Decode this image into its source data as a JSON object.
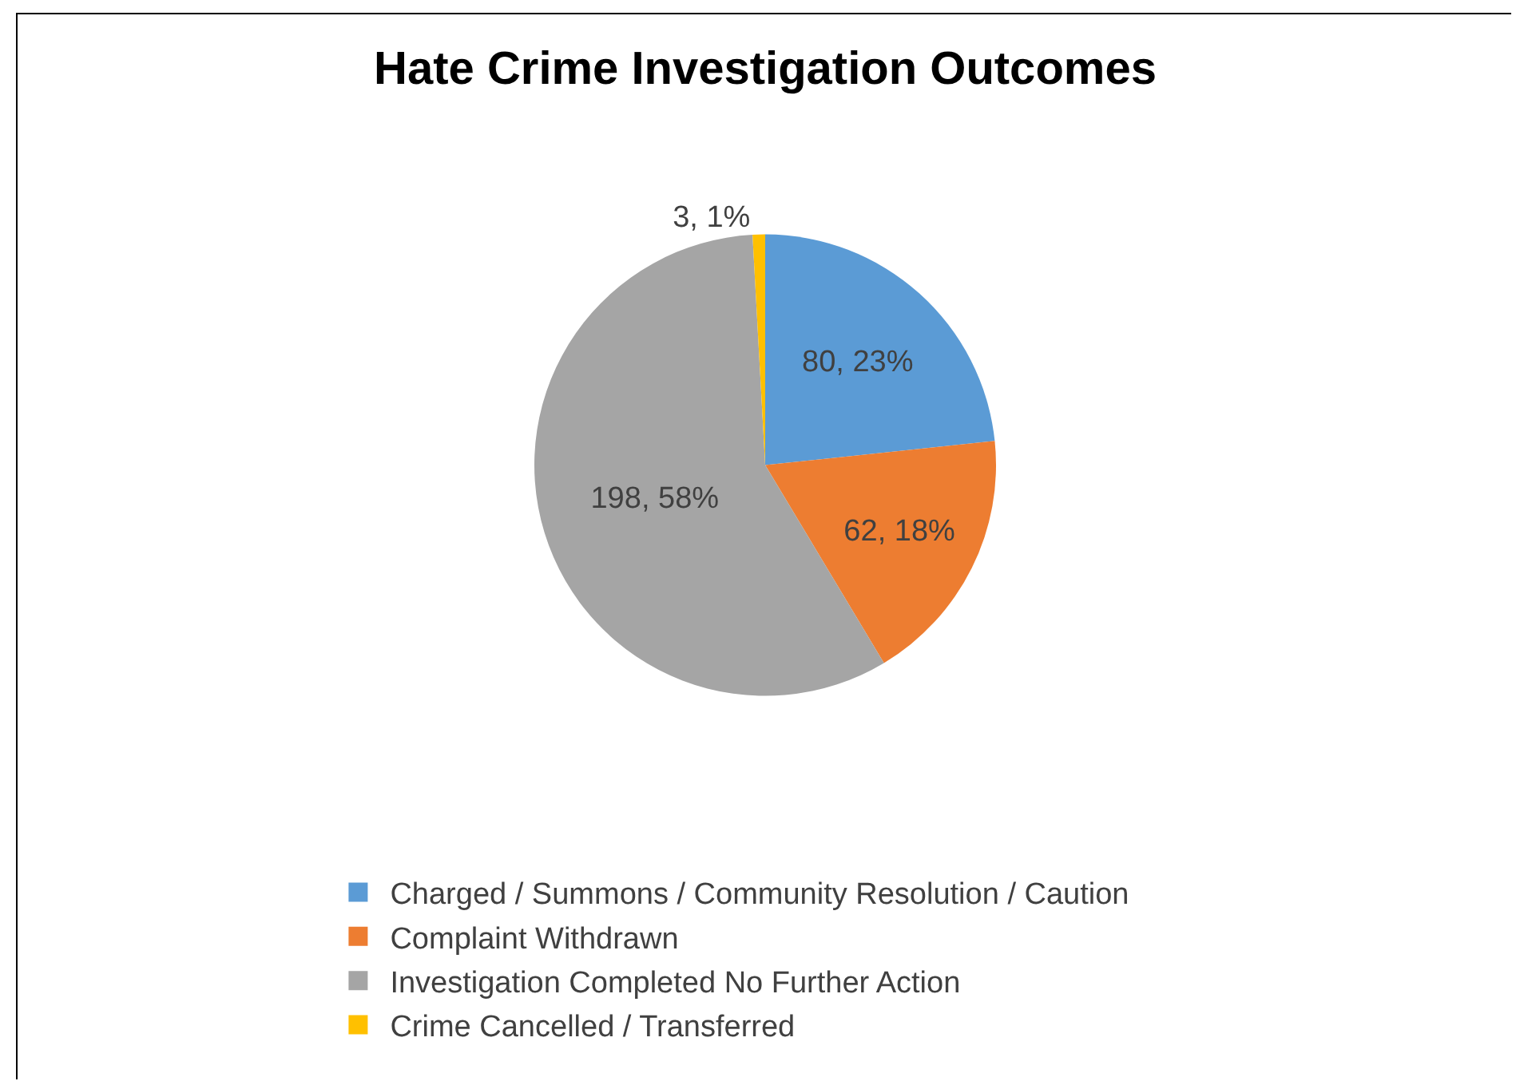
{
  "chart_data": {
    "type": "pie",
    "title": "Hate Crime Investigation Outcomes",
    "categories": [
      "Charged / Summons / Community Resolution / Caution",
      "Complaint Withdrawn",
      "Investigation Completed No Further Action",
      "Crime Cancelled / Transferred"
    ],
    "values": [
      80,
      62,
      198,
      3
    ],
    "colors": [
      "#5b9bd5",
      "#ed7d31",
      "#a5a5a5",
      "#ffc000"
    ],
    "value_labels": [
      "80, 23%",
      "62, 18%",
      "198, 58%",
      "3, 1%"
    ],
    "legend": "bottom"
  }
}
